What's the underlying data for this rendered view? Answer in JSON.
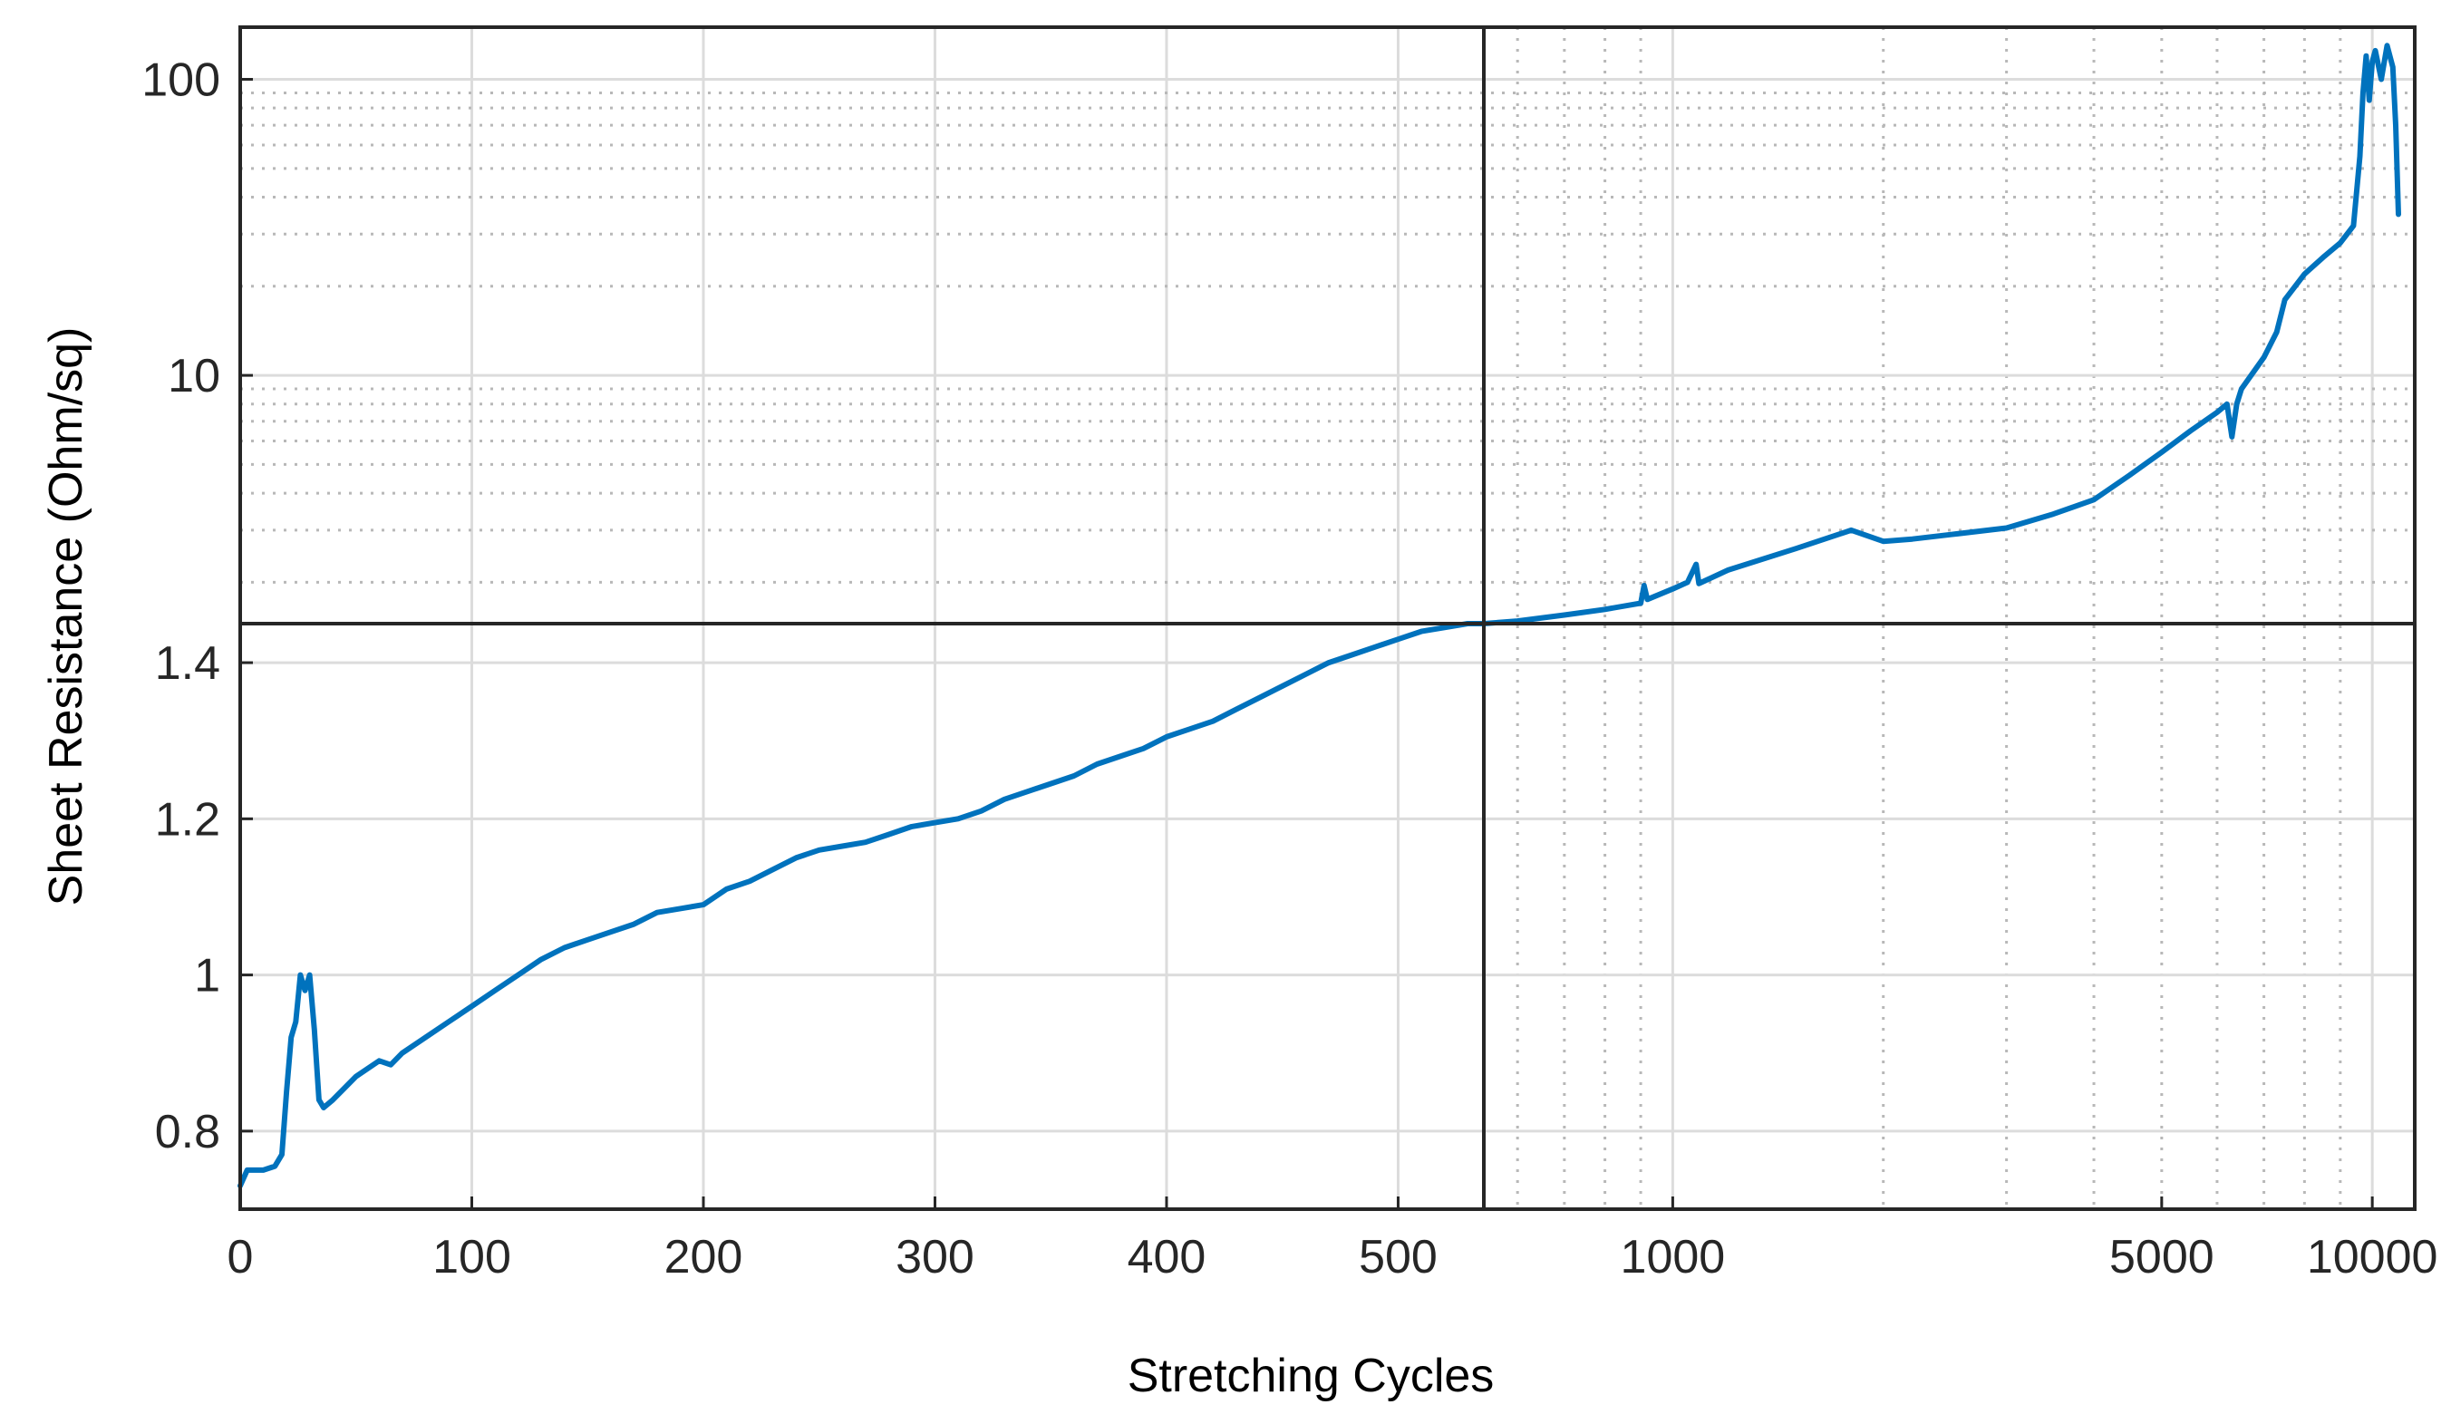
{
  "chart_data": {
    "type": "line",
    "title": "",
    "xlabel": "Stretching Cycles",
    "ylabel": "Sheet Resistance (Ohm/sq)",
    "colors": {
      "line": "#0072BD",
      "axes": "#262626",
      "grid": "#dcdcdc"
    },
    "grid": true,
    "legend": "none",
    "x_axes": [
      {
        "scale": "linear",
        "range": [
          0,
          537
        ],
        "ticks": [
          0,
          100,
          200,
          300,
          400,
          500
        ],
        "tick_labels": [
          "0",
          "100",
          "200",
          "300",
          "400",
          "500"
        ]
      },
      {
        "scale": "log",
        "range": [
          537,
          11500
        ],
        "ticks": [
          1000,
          5000,
          10000
        ],
        "tick_labels": [
          "1000",
          "5000",
          "10000"
        ]
      }
    ],
    "y_axes": [
      {
        "scale": "linear",
        "range": [
          0.7,
          1.45
        ],
        "ticks": [
          0.8,
          1.0,
          1.2,
          1.4
        ],
        "tick_labels": [
          "0.8",
          "1",
          "1.2",
          "1.4"
        ]
      },
      {
        "scale": "log",
        "range": [
          1.45,
          150
        ],
        "ticks": [
          10,
          100
        ],
        "tick_labels": [
          "10",
          "100"
        ]
      }
    ],
    "series": [
      {
        "x": [
          0,
          3,
          10,
          15,
          18,
          20,
          22,
          24,
          26,
          28,
          30,
          32,
          34,
          36,
          40,
          50,
          60,
          65,
          70,
          80,
          90,
          100,
          110,
          120,
          130,
          140,
          150,
          160,
          170,
          180,
          190,
          200,
          210,
          220,
          230,
          240,
          250,
          260,
          270,
          280,
          290,
          300,
          310,
          320,
          330,
          340,
          350,
          360,
          370,
          380,
          390,
          400,
          410,
          420,
          430,
          440,
          450,
          460,
          470,
          480,
          490,
          500,
          510,
          520,
          530,
          537,
          600,
          700,
          800,
          900,
          910,
          920,
          1000,
          1050,
          1080,
          1090,
          1100,
          1200,
          1500,
          1800,
          2000,
          2200,
          2500,
          3000,
          3500,
          4000,
          4500,
          5000,
          5500,
          6000,
          6200,
          6300,
          6400,
          6500,
          7000,
          7300,
          7500,
          8000,
          8500,
          9000,
          9400,
          9600,
          9700,
          9800,
          9900,
          10000,
          10100,
          10300,
          10500,
          10700,
          10800,
          10900
        ],
        "y": [
          0.73,
          0.75,
          0.75,
          0.755,
          0.77,
          0.85,
          0.92,
          0.94,
          1.0,
          0.98,
          1.0,
          0.93,
          0.84,
          0.83,
          0.84,
          0.87,
          0.89,
          0.885,
          0.9,
          0.92,
          0.94,
          0.96,
          0.98,
          1.0,
          1.02,
          1.035,
          1.045,
          1.055,
          1.065,
          1.08,
          1.085,
          1.09,
          1.11,
          1.12,
          1.135,
          1.15,
          1.16,
          1.165,
          1.17,
          1.18,
          1.19,
          1.195,
          1.2,
          1.21,
          1.225,
          1.235,
          1.245,
          1.255,
          1.27,
          1.28,
          1.29,
          1.305,
          1.315,
          1.325,
          1.34,
          1.355,
          1.37,
          1.385,
          1.4,
          1.41,
          1.42,
          1.43,
          1.44,
          1.445,
          1.45,
          1.45,
          1.48,
          1.55,
          1.62,
          1.7,
          1.95,
          1.75,
          1.9,
          2.0,
          2.3,
          1.98,
          2.0,
          2.2,
          2.6,
          3.0,
          2.75,
          2.8,
          2.9,
          3.05,
          3.4,
          3.8,
          4.6,
          5.5,
          6.5,
          7.5,
          8.0,
          6.2,
          8.0,
          9.0,
          11.5,
          14.0,
          18.0,
          22.0,
          25.0,
          28.0,
          32.0,
          55.0,
          90.0,
          120.0,
          85.0,
          115.0,
          125.0,
          100.0,
          130.0,
          110.0,
          70.0,
          35.0
        ]
      }
    ]
  }
}
